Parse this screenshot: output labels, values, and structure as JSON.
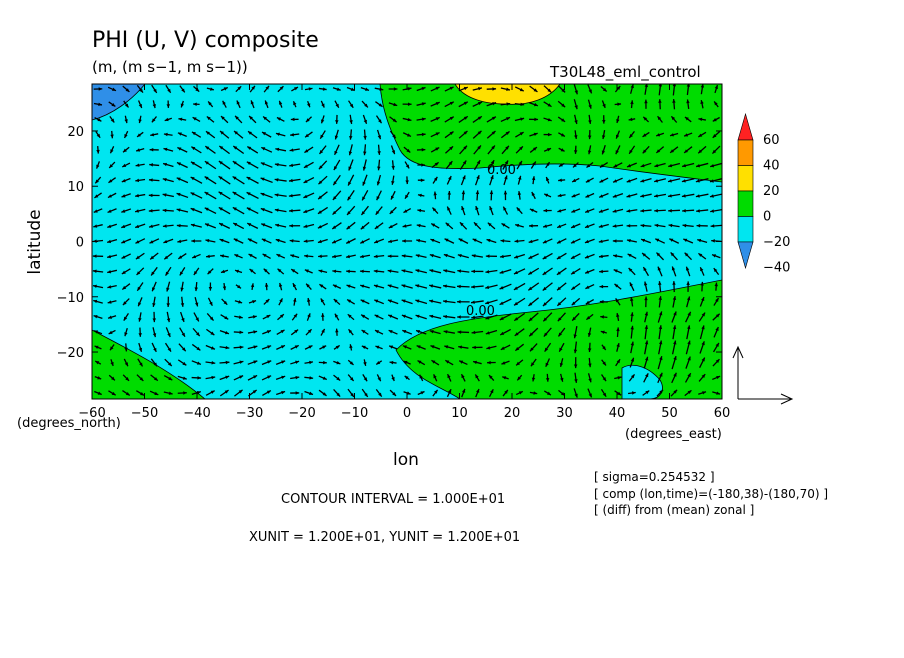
{
  "chart_data": {
    "type": "heatmap",
    "title": "PHI (U, V) composite",
    "units": "(m, (m s−1, m s−1))",
    "run_label": "T30L48_eml_control",
    "xlabel": "lon",
    "ylabel": "latitude",
    "x_unit_label": "(degrees_east)",
    "y_unit_label": "(degrees_north)",
    "xlim": [
      -60,
      60
    ],
    "ylim": [
      -28.5,
      28.5
    ],
    "x_ticks": [
      -60,
      -50,
      -40,
      -30,
      -20,
      -10,
      0,
      10,
      20,
      30,
      40,
      50,
      60
    ],
    "y_ticks": [
      -20,
      -10,
      0,
      10,
      20
    ],
    "colorbar": {
      "levels": [
        -40,
        -20,
        0,
        20,
        40,
        60
      ],
      "colors": [
        "#2f8fe8",
        "#00e6f0",
        "#00dc00",
        "#ffe000",
        "#ff9900",
        "#ff2222"
      ]
    },
    "contour_labels": [
      {
        "text": "0.00",
        "lon": 18,
        "lat": 12.5
      },
      {
        "text": "0.00",
        "lon": 15,
        "lat": -11.5
      }
    ],
    "info_lines": [
      "[ sigma=0.254532 ]",
      "[ comp (lon,time)=(-180,38)-(180,70) ]",
      "[ (diff) from (mean) zonal ]"
    ],
    "contour_interval": "CONTOUR INTERVAL = 1.000E+01",
    "vector_units": "XUNIT = 1.200E+01, YUNIT = 1.200E+01"
  }
}
